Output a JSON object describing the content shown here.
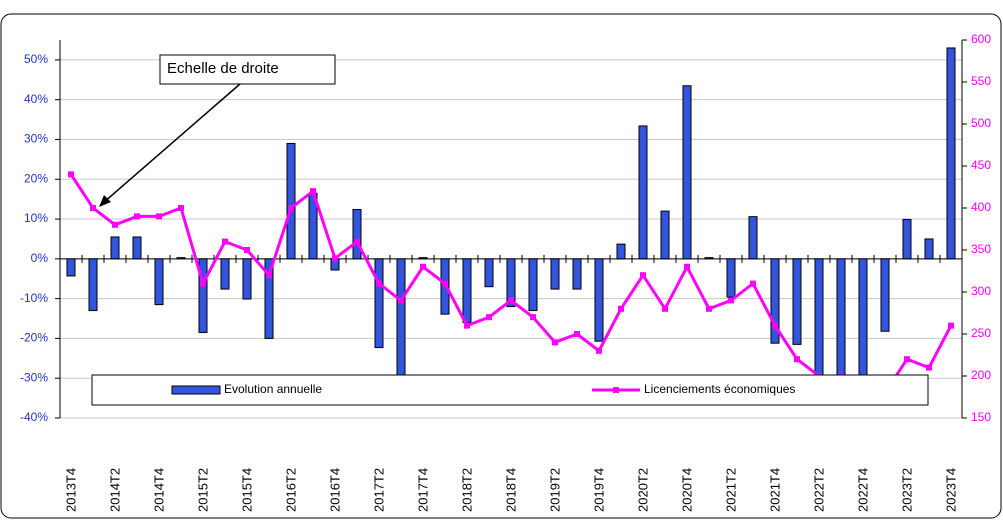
{
  "chart_data": {
    "type": "combo",
    "annotation": "Echelle de droite",
    "categories": [
      "2013T4",
      null,
      "2014T2",
      null,
      "2014T4",
      null,
      "2015T2",
      null,
      "2015T4",
      null,
      "2016T2",
      null,
      "2016T4",
      null,
      "2017T2",
      null,
      "2017T4",
      null,
      "2018T2",
      null,
      "2018T4",
      null,
      "2019T2",
      null,
      "2019T4",
      null,
      "2020T2",
      null,
      "2020T4",
      null,
      "2021T2",
      null,
      "2021T4",
      null,
      "2022T2",
      null,
      "2022T4",
      null,
      "2023T2",
      null,
      "2023T4"
    ],
    "series": [
      {
        "name": "Evolution annuelle",
        "type": "bar",
        "color": "#3355dd",
        "values": [
          -4.3,
          -13,
          5.5,
          5.5,
          -11.5,
          0.3,
          -18.5,
          -7.6,
          -10.1,
          -20,
          29,
          16.5,
          -2.8,
          12.4,
          -22.3,
          -30.9,
          0.3,
          -13.9,
          -16,
          -7,
          -12,
          -13,
          -7.6,
          -7.6,
          -20.7,
          3.7,
          33.4,
          12,
          43.5,
          0.3,
          -9.6,
          10.6,
          -21.2,
          -21.5,
          -31,
          -35.5,
          -35,
          -18.2,
          9.9,
          5,
          53
        ]
      },
      {
        "name": "Licenciements économiques",
        "type": "line",
        "axis": "y2",
        "color": "#ff00ff",
        "values": [
          440,
          400,
          380,
          390,
          390,
          400,
          310,
          360,
          350,
          320,
          400,
          420,
          340,
          360,
          310,
          290,
          330,
          310,
          260,
          270,
          290,
          270,
          240,
          250,
          230,
          280,
          320,
          280,
          330,
          280,
          290,
          310,
          260,
          220,
          200,
          200,
          170,
          180,
          220,
          210,
          260
        ]
      }
    ],
    "ylim": [
      -40,
      55
    ],
    "yticks": [
      {
        "value": -40,
        "label": "-40%"
      },
      {
        "value": -30,
        "label": "-30%"
      },
      {
        "value": -20,
        "label": "-20%"
      },
      {
        "value": -10,
        "label": "-10%"
      },
      {
        "value": 0,
        "label": "0%"
      },
      {
        "value": 10,
        "label": "10%"
      },
      {
        "value": 20,
        "label": "20%"
      },
      {
        "value": 30,
        "label": "30%"
      },
      {
        "value": 40,
        "label": "40%"
      },
      {
        "value": 50,
        "label": "50%"
      }
    ],
    "y2lim": [
      150,
      600
    ],
    "y2ticks": [
      150,
      200,
      250,
      300,
      350,
      400,
      450,
      500,
      550,
      600
    ],
    "grid": true,
    "legend": "bottom"
  }
}
